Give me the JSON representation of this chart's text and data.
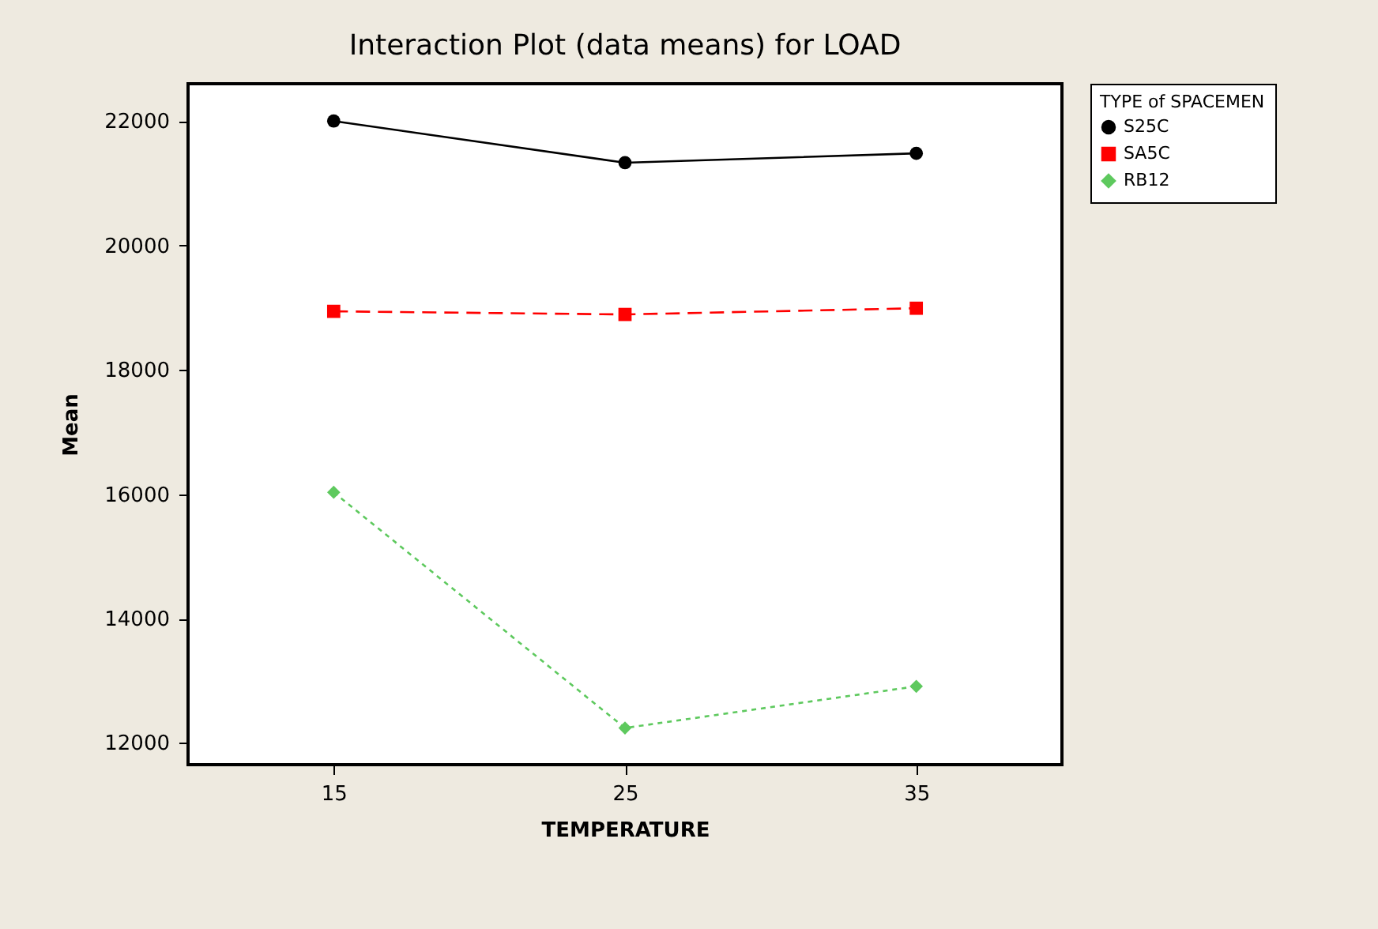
{
  "chart_data": {
    "type": "line",
    "title": "Interaction Plot (data means) for LOAD",
    "xlabel": "TEMPERATURE",
    "ylabel": "Mean",
    "legend_title": "TYPE of SPACEMEN",
    "x": [
      15,
      25,
      35
    ],
    "series": [
      {
        "name": "S25C",
        "color": "#000000",
        "marker": "circle",
        "line_style": "solid",
        "values": [
          22000,
          21330,
          21480
        ]
      },
      {
        "name": "SA5C",
        "color": "#ff0000",
        "marker": "square",
        "line_style": "dashed",
        "values": [
          18940,
          18890,
          18990
        ]
      },
      {
        "name": "RB12",
        "color": "#5ec95e",
        "marker": "diamond",
        "line_style": "dotted",
        "values": [
          16030,
          12240,
          12910
        ]
      }
    ],
    "xlim": [
      10,
      40
    ],
    "xticks": [
      15,
      25,
      35
    ],
    "ylim": [
      11650,
      22600
    ],
    "yticks": [
      12000,
      14000,
      16000,
      18000,
      20000,
      22000
    ],
    "grid": false,
    "legend": "top right"
  }
}
